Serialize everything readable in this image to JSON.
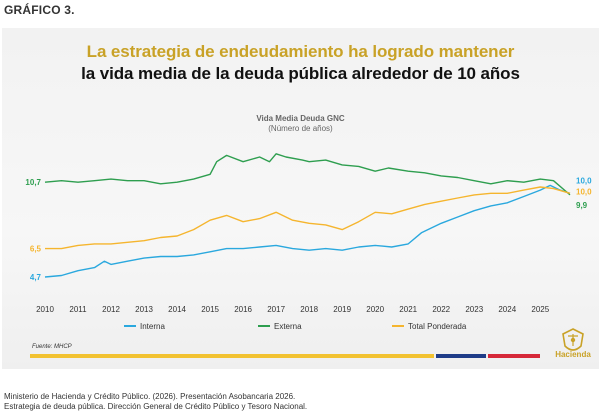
{
  "figure_label": "GRÁFICO 3.",
  "headline": {
    "line1": "La estrategia de endeudamiento ha logrado mantener",
    "line2": "la vida media de la deuda pública alrededor de 10 años"
  },
  "source_note": "Fuente: MHCP",
  "logo_text": "Hacienda",
  "citation": {
    "line1": "Ministerio de Hacienda y Crédito Público. (2026). Presentación Asobancaria 2026.",
    "line2": "Estrategia de deuda pública. Dirección General de Crédito Público y Tesoro Nacional."
  },
  "colors": {
    "accent_gold": "#c9a227",
    "bar_gold": "#f2c230",
    "bar_navy": "#1f3c88",
    "bar_red": "#d62839",
    "axis_text": "#333333"
  },
  "chart_data": {
    "type": "line",
    "title": "Vida Media Deuda GNC",
    "subtitle": "(Número de años)",
    "xlabel": "",
    "ylabel": "",
    "x_ticks": [
      "2010",
      "2011",
      "2012",
      "2013",
      "2014",
      "2015",
      "2016",
      "2017",
      "2018",
      "2019",
      "2020",
      "2021",
      "2022",
      "2023",
      "2024",
      "2025"
    ],
    "xlim": [
      2010,
      2025.9
    ],
    "ylim": [
      3.5,
      13.5
    ],
    "grid": false,
    "legend_position": "bottom",
    "series": [
      {
        "name": "Interna",
        "color": "#2aa8de",
        "start_label": "4,7",
        "end_label": "10,0",
        "points": [
          [
            2010,
            4.7
          ],
          [
            2010.5,
            4.8
          ],
          [
            2011,
            5.1
          ],
          [
            2011.5,
            5.3
          ],
          [
            2011.8,
            5.7
          ],
          [
            2012,
            5.5
          ],
          [
            2012.5,
            5.7
          ],
          [
            2013,
            5.9
          ],
          [
            2013.5,
            6.0
          ],
          [
            2014,
            6.0
          ],
          [
            2014.5,
            6.1
          ],
          [
            2015,
            6.3
          ],
          [
            2015.5,
            6.5
          ],
          [
            2016,
            6.5
          ],
          [
            2016.5,
            6.6
          ],
          [
            2017,
            6.7
          ],
          [
            2017.5,
            6.5
          ],
          [
            2018,
            6.4
          ],
          [
            2018.5,
            6.5
          ],
          [
            2019,
            6.4
          ],
          [
            2019.5,
            6.6
          ],
          [
            2020,
            6.7
          ],
          [
            2020.5,
            6.6
          ],
          [
            2021,
            6.8
          ],
          [
            2021.4,
            7.5
          ],
          [
            2022,
            8.1
          ],
          [
            2022.5,
            8.5
          ],
          [
            2023,
            8.9
          ],
          [
            2023.5,
            9.2
          ],
          [
            2024,
            9.4
          ],
          [
            2024.5,
            9.8
          ],
          [
            2025,
            10.2
          ],
          [
            2025.3,
            10.5
          ],
          [
            2025.6,
            10.2
          ],
          [
            2025.9,
            10.0
          ]
        ]
      },
      {
        "name": "Externa",
        "color": "#2e9e4f",
        "start_label": "10,7",
        "end_label": "9,9",
        "points": [
          [
            2010,
            10.7
          ],
          [
            2010.5,
            10.8
          ],
          [
            2011,
            10.7
          ],
          [
            2011.5,
            10.8
          ],
          [
            2012,
            10.9
          ],
          [
            2012.5,
            10.8
          ],
          [
            2013,
            10.8
          ],
          [
            2013.5,
            10.6
          ],
          [
            2014,
            10.7
          ],
          [
            2014.5,
            10.9
          ],
          [
            2015,
            11.2
          ],
          [
            2015.2,
            12.0
          ],
          [
            2015.5,
            12.4
          ],
          [
            2016,
            12.0
          ],
          [
            2016.5,
            12.3
          ],
          [
            2016.8,
            12.0
          ],
          [
            2017,
            12.5
          ],
          [
            2017.3,
            12.3
          ],
          [
            2017.8,
            12.1
          ],
          [
            2018,
            12.0
          ],
          [
            2018.5,
            12.1
          ],
          [
            2019,
            11.8
          ],
          [
            2019.5,
            11.7
          ],
          [
            2020,
            11.4
          ],
          [
            2020.4,
            11.6
          ],
          [
            2021,
            11.4
          ],
          [
            2021.5,
            11.3
          ],
          [
            2022,
            11.1
          ],
          [
            2022.5,
            11.0
          ],
          [
            2023,
            10.8
          ],
          [
            2023.5,
            10.6
          ],
          [
            2024,
            10.8
          ],
          [
            2024.5,
            10.7
          ],
          [
            2025,
            10.9
          ],
          [
            2025.4,
            10.8
          ],
          [
            2025.9,
            9.9
          ]
        ]
      },
      {
        "name": "Total Ponderada",
        "color": "#f5b52e",
        "start_label": "6,5",
        "end_label": "10,0",
        "points": [
          [
            2010,
            6.5
          ],
          [
            2010.5,
            6.5
          ],
          [
            2011,
            6.7
          ],
          [
            2011.5,
            6.8
          ],
          [
            2012,
            6.8
          ],
          [
            2012.5,
            6.9
          ],
          [
            2013,
            7.0
          ],
          [
            2013.5,
            7.2
          ],
          [
            2014,
            7.3
          ],
          [
            2014.5,
            7.7
          ],
          [
            2015,
            8.3
          ],
          [
            2015.5,
            8.6
          ],
          [
            2016,
            8.2
          ],
          [
            2016.5,
            8.4
          ],
          [
            2017,
            8.8
          ],
          [
            2017.5,
            8.3
          ],
          [
            2018,
            8.1
          ],
          [
            2018.5,
            8.0
          ],
          [
            2019,
            7.7
          ],
          [
            2019.5,
            8.2
          ],
          [
            2020,
            8.8
          ],
          [
            2020.5,
            8.7
          ],
          [
            2021,
            9.0
          ],
          [
            2021.5,
            9.3
          ],
          [
            2022,
            9.5
          ],
          [
            2022.5,
            9.7
          ],
          [
            2023,
            9.9
          ],
          [
            2023.5,
            10.0
          ],
          [
            2024,
            10.0
          ],
          [
            2024.5,
            10.2
          ],
          [
            2025,
            10.4
          ],
          [
            2025.4,
            10.3
          ],
          [
            2025.9,
            10.0
          ]
        ]
      }
    ]
  }
}
